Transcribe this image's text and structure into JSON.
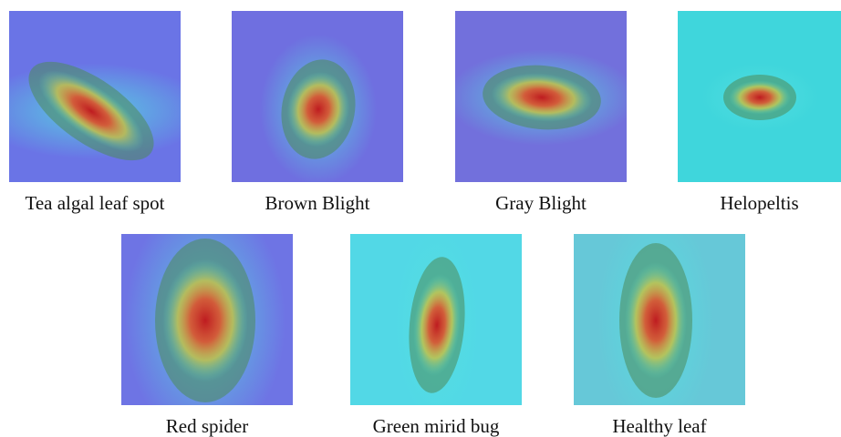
{
  "figure": {
    "panels": [
      {
        "label": "Tea algal leaf spot"
      },
      {
        "label": "Brown Blight"
      },
      {
        "label": "Gray Blight"
      },
      {
        "label": "Helopeltis"
      },
      {
        "label": "Red spider"
      },
      {
        "label": "Green mirid bug"
      },
      {
        "label": "Healthy leaf"
      }
    ]
  }
}
